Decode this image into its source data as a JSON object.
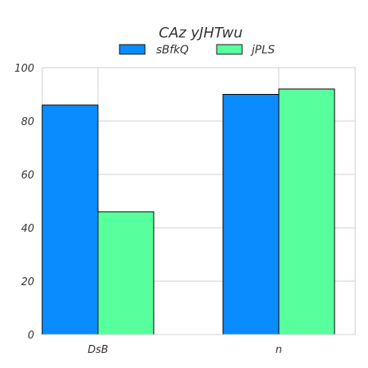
{
  "chart_data": {
    "type": "bar",
    "title": "CAz yJHTwu",
    "categories": [
      "DsB",
      "n"
    ],
    "series": [
      {
        "name": "sBfkQ",
        "values": [
          86,
          90
        ],
        "color": "#0a8cff"
      },
      {
        "name": "jPLS",
        "values": [
          46,
          92
        ],
        "color": "#58ff9d"
      }
    ],
    "xlabel": "",
    "ylabel": "",
    "ylim": [
      0,
      100
    ],
    "yticks": [
      0,
      20,
      40,
      60,
      80,
      100
    ],
    "grid": true,
    "legend_position": "top-center"
  }
}
